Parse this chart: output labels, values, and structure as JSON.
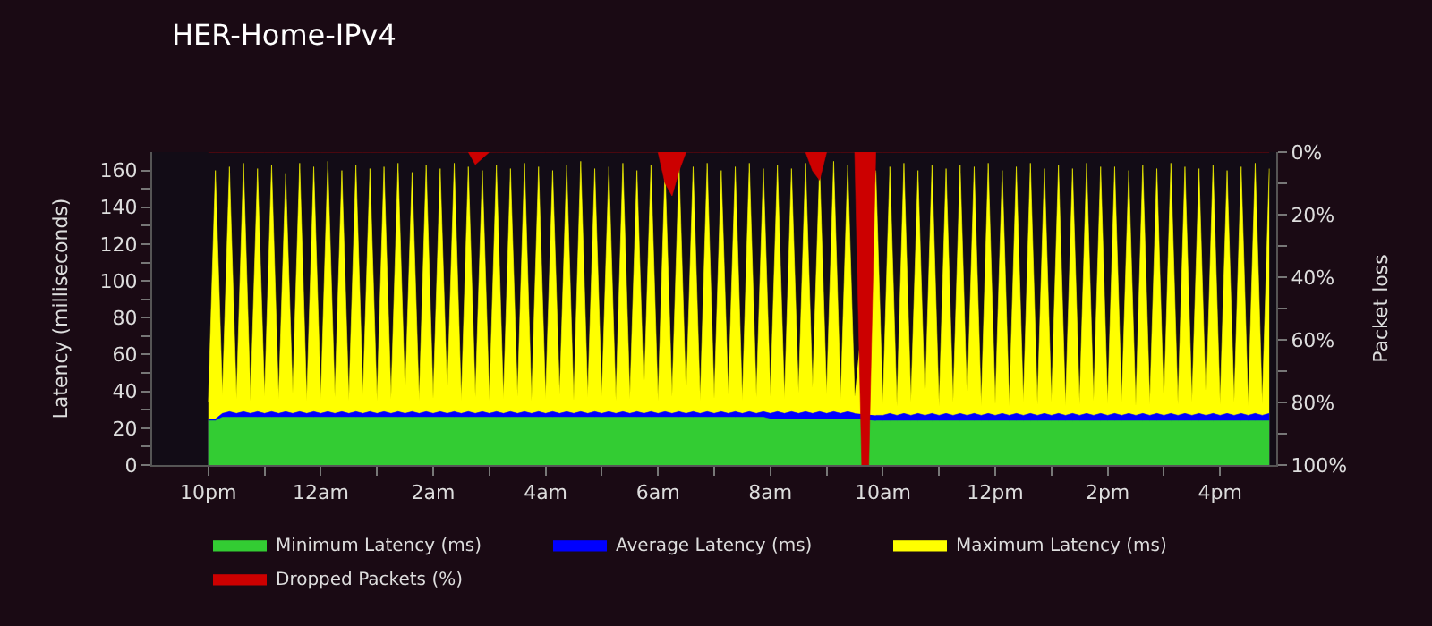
{
  "chart_data": {
    "type": "area",
    "title": "HER-Home-IPv4",
    "ylabel": "Latency (milliseconds)",
    "y2label": "Packet loss",
    "xlim": [
      "--01-01T21:00",
      "--01-02T17:00"
    ],
    "xticks": [
      {
        "value": "--01-01T22:00",
        "label": "10pm"
      },
      {
        "value": "--01-01T23:00",
        "label": null
      },
      {
        "value": "--01-02T00:00",
        "label": "12am"
      },
      {
        "value": "--01-02T01:00",
        "label": null
      },
      {
        "value": "--01-02T02:00",
        "label": "2am"
      },
      {
        "value": "--01-02T03:00",
        "label": null
      },
      {
        "value": "--01-02T04:00",
        "label": "4am"
      },
      {
        "value": "--01-02T05:00",
        "label": null
      },
      {
        "value": "--01-02T06:00",
        "label": "6am"
      },
      {
        "value": "--01-02T07:00",
        "label": null
      },
      {
        "value": "--01-02T08:00",
        "label": "8am"
      },
      {
        "value": "--01-02T09:00",
        "label": null
      },
      {
        "value": "--01-02T10:00",
        "label": "10am"
      },
      {
        "value": "--01-02T11:00",
        "label": null
      },
      {
        "value": "--01-02T12:00",
        "label": "12pm"
      },
      {
        "value": "--01-02T13:00",
        "label": null
      },
      {
        "value": "--01-02T14:00",
        "label": "2pm"
      },
      {
        "value": "--01-02T15:00",
        "label": null
      },
      {
        "value": "--01-02T16:00",
        "label": "4pm"
      }
    ],
    "ylim": [
      0,
      170
    ],
    "yticks": [
      0,
      {
        "value": 10,
        "label": null
      },
      20,
      {
        "value": 30,
        "label": null
      },
      40,
      {
        "value": 50,
        "label": null
      },
      60,
      {
        "value": 70,
        "label": null
      },
      80,
      {
        "value": 90,
        "label": null
      },
      100,
      {
        "value": 110,
        "label": null
      },
      120,
      {
        "value": 130,
        "label": null
      },
      140,
      {
        "value": 150,
        "label": null
      },
      160
    ],
    "y2lim": [
      100,
      0
    ],
    "y2ticks": [
      {
        "value": 0,
        "label": "0%"
      },
      {
        "value": 10,
        "label": null
      },
      {
        "value": 20,
        "label": "20%"
      },
      {
        "value": 30,
        "label": null
      },
      {
        "value": 40,
        "label": "40%"
      },
      {
        "value": 50,
        "label": null
      },
      {
        "value": 60,
        "label": "60%"
      },
      {
        "value": 70,
        "label": null
      },
      {
        "value": 80,
        "label": "80%"
      },
      {
        "value": 90,
        "label": null
      },
      {
        "value": 100,
        "label": "100%"
      }
    ],
    "legend": "bottom",
    "x": [
      "--01-01T22:00",
      "--01-01T22:07:30",
      "--01-01T22:15",
      "--01-01T22:22:30",
      "--01-01T22:30",
      "--01-01T22:37:30",
      "--01-01T22:45",
      "--01-01T22:52:30",
      "--01-01T23:00",
      "--01-01T23:07:30",
      "--01-01T23:15",
      "--01-01T23:22:30",
      "--01-01T23:30",
      "--01-01T23:37:30",
      "--01-01T23:45",
      "--01-01T23:52:30",
      "--01-02T00:00",
      "--01-02T00:07:30",
      "--01-02T00:15",
      "--01-02T00:22:30",
      "--01-02T00:30",
      "--01-02T00:37:30",
      "--01-02T00:45",
      "--01-02T00:52:30",
      "--01-02T01:00",
      "--01-02T01:07:30",
      "--01-02T01:15",
      "--01-02T01:22:30",
      "--01-02T01:30",
      "--01-02T01:37:30",
      "--01-02T01:45",
      "--01-02T01:52:30",
      "--01-02T02:00",
      "--01-02T02:07:30",
      "--01-02T02:15",
      "--01-02T02:22:30",
      "--01-02T02:30",
      "--01-02T02:37:30",
      "--01-02T02:45",
      "--01-02T02:52:30",
      "--01-02T03:00",
      "--01-02T03:07:30",
      "--01-02T03:15",
      "--01-02T03:22:30",
      "--01-02T03:30",
      "--01-02T03:37:30",
      "--01-02T03:45",
      "--01-02T03:52:30",
      "--01-02T04:00",
      "--01-02T04:07:30",
      "--01-02T04:15",
      "--01-02T04:22:30",
      "--01-02T04:30",
      "--01-02T04:37:30",
      "--01-02T04:45",
      "--01-02T04:52:30",
      "--01-02T05:00",
      "--01-02T05:07:30",
      "--01-02T05:15",
      "--01-02T05:22:30",
      "--01-02T05:30",
      "--01-02T05:37:30",
      "--01-02T05:45",
      "--01-02T05:52:30",
      "--01-02T06:00",
      "--01-02T06:07:30",
      "--01-02T06:15",
      "--01-02T06:22:30",
      "--01-02T06:30",
      "--01-02T06:37:30",
      "--01-02T06:45",
      "--01-02T06:52:30",
      "--01-02T07:00",
      "--01-02T07:07:30",
      "--01-02T07:15",
      "--01-02T07:22:30",
      "--01-02T07:30",
      "--01-02T07:37:30",
      "--01-02T07:45",
      "--01-02T07:52:30",
      "--01-02T08:00",
      "--01-02T08:07:30",
      "--01-02T08:15",
      "--01-02T08:22:30",
      "--01-02T08:30",
      "--01-02T08:37:30",
      "--01-02T08:45",
      "--01-02T08:52:30",
      "--01-02T09:00",
      "--01-02T09:07:30",
      "--01-02T09:15",
      "--01-02T09:22:30",
      "--01-02T09:30",
      "--01-02T09:37:30",
      "--01-02T09:45",
      "--01-02T09:52:30",
      "--01-02T10:00",
      "--01-02T10:07:30",
      "--01-02T10:15",
      "--01-02T10:22:30",
      "--01-02T10:30",
      "--01-02T10:37:30",
      "--01-02T10:45",
      "--01-02T10:52:30",
      "--01-02T11:00",
      "--01-02T11:07:30",
      "--01-02T11:15",
      "--01-02T11:22:30",
      "--01-02T11:30",
      "--01-02T11:37:30",
      "--01-02T11:45",
      "--01-02T11:52:30",
      "--01-02T12:00",
      "--01-02T12:07:30",
      "--01-02T12:15",
      "--01-02T12:22:30",
      "--01-02T12:30",
      "--01-02T12:37:30",
      "--01-02T12:45",
      "--01-02T12:52:30",
      "--01-02T13:00",
      "--01-02T13:07:30",
      "--01-02T13:15",
      "--01-02T13:22:30",
      "--01-02T13:30",
      "--01-02T13:37:30",
      "--01-02T13:45",
      "--01-02T13:52:30",
      "--01-02T14:00",
      "--01-02T14:07:30",
      "--01-02T14:15",
      "--01-02T14:22:30",
      "--01-02T14:30",
      "--01-02T14:37:30",
      "--01-02T14:45",
      "--01-02T14:52:30",
      "--01-02T15:00",
      "--01-02T15:07:30",
      "--01-02T15:15",
      "--01-02T15:22:30",
      "--01-02T15:30",
      "--01-02T15:37:30",
      "--01-02T15:45",
      "--01-02T15:52:30",
      "--01-02T16:00",
      "--01-02T16:07:30",
      "--01-02T16:15",
      "--01-02T16:22:30",
      "--01-02T16:30",
      "--01-02T16:37:30",
      "--01-02T16:45",
      "--01-02T16:52:30"
    ],
    "series": [
      {
        "name": "Minimum Latency (ms)",
        "color": "#33cc33",
        "values": [
          24,
          24,
          26,
          26,
          26,
          26,
          26,
          26,
          26,
          26,
          26,
          26,
          26,
          26,
          26,
          26,
          26,
          26,
          26,
          26,
          26,
          26,
          26,
          26,
          26,
          26,
          26,
          26,
          26,
          26,
          26,
          26,
          26,
          26,
          26,
          26,
          26,
          26,
          26,
          26,
          26,
          26,
          26,
          26,
          26,
          26,
          26,
          26,
          26,
          26,
          26,
          26,
          26,
          26,
          26,
          26,
          26,
          26,
          26,
          26,
          26,
          26,
          26,
          26,
          26,
          26,
          26,
          26,
          26,
          26,
          26,
          26,
          26,
          26,
          26,
          26,
          26,
          26,
          26,
          26,
          25,
          25,
          25,
          25,
          25,
          25,
          25,
          25,
          25,
          25,
          25,
          25,
          25,
          null,
          null,
          24,
          24,
          24,
          24,
          24,
          24,
          24,
          24,
          24,
          24,
          24,
          24,
          24,
          24,
          24,
          24,
          24,
          24,
          24,
          24,
          24,
          24,
          24,
          24,
          24,
          24,
          24,
          24,
          24,
          24,
          24,
          24,
          24,
          24,
          24,
          24,
          24,
          24,
          24,
          24,
          24,
          24,
          24,
          24,
          24,
          24,
          24,
          24,
          24,
          24,
          24,
          24,
          24,
          24,
          24,
          24,
          24
        ]
      },
      {
        "name": "Average Latency (ms)",
        "color": "#0000ff",
        "values": [
          25,
          25,
          28,
          29,
          28,
          29,
          28,
          29,
          28,
          29,
          28,
          29,
          28,
          29,
          28,
          29,
          28,
          29,
          28,
          29,
          28,
          29,
          28,
          29,
          28,
          29,
          28,
          29,
          28,
          29,
          28,
          29,
          28,
          29,
          28,
          29,
          28,
          29,
          28,
          29,
          28,
          29,
          28,
          29,
          28,
          29,
          28,
          29,
          28,
          29,
          28,
          29,
          28,
          29,
          28,
          29,
          28,
          29,
          28,
          29,
          28,
          29,
          28,
          29,
          28,
          29,
          28,
          29,
          28,
          29,
          28,
          29,
          28,
          29,
          28,
          29,
          28,
          29,
          28,
          29,
          28,
          29,
          28,
          29,
          28,
          29,
          28,
          29,
          28,
          29,
          28,
          29,
          28,
          null,
          null,
          27,
          27,
          28,
          27,
          28,
          27,
          28,
          27,
          28,
          27,
          28,
          27,
          28,
          27,
          28,
          27,
          28,
          27,
          28,
          27,
          28,
          27,
          28,
          27,
          28,
          27,
          28,
          27,
          28,
          27,
          28,
          27,
          28,
          27,
          28,
          27,
          28,
          27,
          28,
          27,
          28,
          27,
          28,
          27,
          28,
          27,
          28,
          27,
          28,
          27,
          28,
          27,
          28,
          27,
          28,
          27,
          28
        ]
      },
      {
        "name": "Maximum Latency (ms)",
        "color": "#ffff00",
        "values": [
          34,
          160,
          38,
          162,
          36,
          164,
          35,
          161,
          37,
          163,
          36,
          158,
          39,
          164,
          35,
          162,
          36,
          165,
          37,
          160,
          35,
          163,
          38,
          161,
          35,
          162,
          36,
          164,
          37,
          159,
          35,
          163,
          36,
          161,
          38,
          164,
          35,
          162,
          37,
          160,
          35,
          163,
          36,
          161,
          37,
          164,
          35,
          162,
          36,
          160,
          38,
          163,
          35,
          165,
          37,
          161,
          37,
          162,
          35,
          164,
          36,
          160,
          38,
          163,
          35,
          161,
          37,
          163,
          36,
          162,
          35,
          164,
          36,
          160,
          38,
          162,
          35,
          164,
          37,
          161,
          37,
          163,
          36,
          161,
          39,
          164,
          42,
          162,
          38,
          165,
          36,
          163,
          37,
          null,
          null,
          160,
          33,
          162,
          32,
          164,
          34,
          160,
          33,
          163,
          32,
          161,
          34,
          163,
          33,
          162,
          32,
          164,
          33,
          160,
          32,
          162,
          34,
          164,
          33,
          161,
          34,
          163,
          32,
          161,
          33,
          164,
          35,
          162,
          33,
          162,
          34,
          160,
          32,
          163,
          33,
          161,
          32,
          164,
          33,
          162,
          34,
          161,
          32,
          163,
          33,
          160,
          34,
          162,
          32,
          164,
          33,
          161
        ]
      },
      {
        "name": "Dropped Packets (%)",
        "color": "#cc0000",
        "axis": "y2",
        "values": [
          0,
          0,
          0,
          0,
          0,
          0,
          0,
          0,
          0,
          0,
          0,
          0,
          0,
          0,
          0,
          0,
          0,
          0,
          0,
          0,
          0,
          0,
          0,
          0,
          0,
          0,
          0,
          0,
          0,
          0,
          0,
          0,
          0,
          0,
          0,
          0,
          0,
          0,
          4,
          2,
          0,
          0,
          0,
          0,
          0,
          0,
          0,
          0,
          0,
          0,
          0,
          0,
          0,
          0,
          0,
          0,
          0,
          0,
          0,
          0,
          0,
          0,
          0,
          0,
          0,
          10,
          14,
          6,
          0,
          0,
          0,
          0,
          0,
          0,
          0,
          0,
          0,
          0,
          0,
          0,
          0,
          0,
          0,
          0,
          0,
          0,
          6,
          9,
          0,
          0,
          0,
          0,
          0,
          100,
          100,
          0,
          0,
          0,
          0,
          0,
          0,
          0,
          0,
          0,
          0,
          0,
          0,
          0,
          0,
          0,
          0,
          0,
          0,
          0,
          0,
          0,
          0,
          0,
          0,
          0,
          0,
          0,
          0,
          0,
          0,
          0,
          0,
          0,
          0,
          0,
          0,
          0,
          0,
          0,
          0,
          0,
          0,
          0,
          0,
          0,
          0,
          0,
          0,
          0,
          0,
          0,
          0,
          0,
          0,
          0,
          0,
          0
        ]
      }
    ]
  }
}
